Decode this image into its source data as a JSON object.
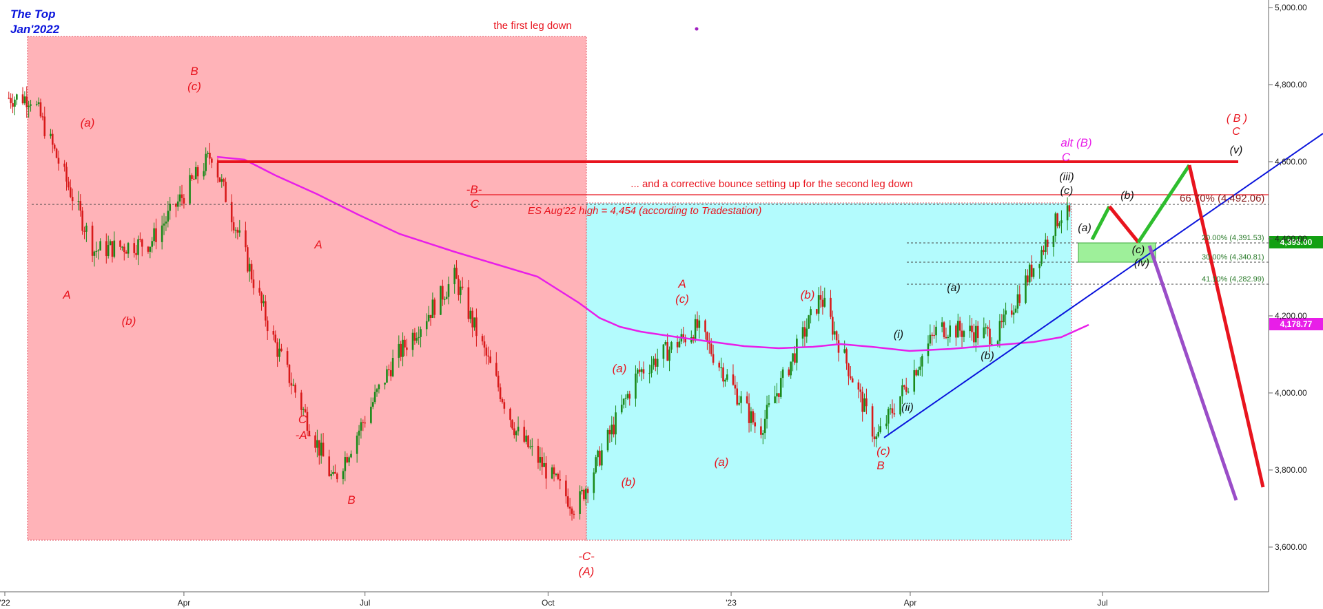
{
  "chart_data": {
    "type": "candlestick",
    "title_lines": [
      "The Top",
      "Jan'2022"
    ],
    "x_ticks": [
      "'22",
      "Apr",
      "Jul",
      "Oct",
      "'23",
      "Apr",
      "Jul"
    ],
    "y_ticks": [
      "5,000.00",
      "4,800.00",
      "4,600.00",
      "4,400.00",
      "4,200.00",
      "4,000.00",
      "3,800.00",
      "3,600.00"
    ],
    "ylim": [
      3480,
      5010
    ],
    "price_label": "4,393.00",
    "ma_label": "4,178.77",
    "approx_closes": [
      [
        "2022-01",
        4766
      ],
      [
        "2022-02",
        4370
      ],
      [
        "2022-03",
        4390
      ],
      [
        "2022-04",
        4620
      ],
      [
        "2022-05",
        4150
      ],
      [
        "2022-06",
        3770
      ],
      [
        "2022-07",
        4080
      ],
      [
        "2022-08",
        4300
      ],
      [
        "2022-09",
        3900
      ],
      [
        "2022-10",
        3700
      ],
      [
        "2022-11",
        4050
      ],
      [
        "2022-12",
        4170
      ],
      [
        "2023-01",
        3900
      ],
      [
        "2023-02",
        4250
      ],
      [
        "2023-03",
        3880
      ],
      [
        "2023-04",
        4170
      ],
      [
        "2023-05",
        4150
      ],
      [
        "2023-06",
        4460
      ]
    ],
    "annotations": {
      "first_leg": "the first leg down",
      "bounce": "... and a corrective bounce setting up for the second leg down",
      "es_high": "ES Aug'22 high = 4,454 (according to Tradestation)",
      "alt_b": "alt (B)",
      "alt_c": "C",
      "future_b": "( B )",
      "future_c": "C"
    },
    "fib_levels": [
      {
        "label": "66.70% (4,492.06)",
        "value": 4492.06
      },
      {
        "label": "20.00% (4,391.53)",
        "value": 4391.53
      },
      {
        "label": "30.00% (4,340.81)",
        "value": 4340.81
      },
      {
        "label": "41.10% (4,282.99)",
        "value": 4282.99
      }
    ],
    "wave_labels": {
      "red": [
        "A",
        "(a)",
        "(b)",
        "B",
        "(c)",
        "C",
        "-A-",
        "A",
        "B",
        "-B-",
        "C",
        "-C-",
        "(A)",
        "(a)",
        "(b)",
        "A",
        "(c)",
        "(a)",
        "(b)",
        "(c)",
        "B"
      ],
      "black": [
        "(i)",
        "(ii)",
        "(a)",
        "(b)",
        "(iii)",
        "(c)",
        "(a)",
        "(b)",
        "(c)",
        "(iv)",
        "(v)"
      ]
    },
    "colors": {
      "first_leg_box": "#ffb3b8",
      "bounce_box": "#b3fbfd",
      "moving_average": "#e81ee8",
      "resistance": "#e8141e",
      "trendline": "#0a14dc",
      "up_candle": "#1a8a1a",
      "down_candle": "#d81a1a",
      "projection_up": "#2ebd2e",
      "projection_down": "#e8141e",
      "projection_alt": "#9a4dc8"
    }
  }
}
